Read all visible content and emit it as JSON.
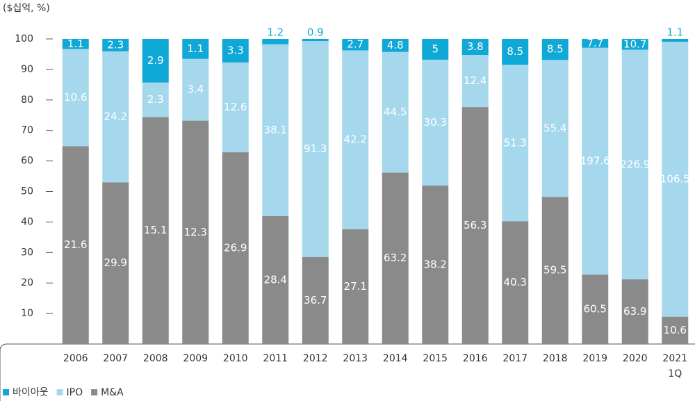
{
  "chart_data": {
    "type": "bar",
    "stack": "percent",
    "y_label": "($십억, %)",
    "categories": [
      "2006",
      "2007",
      "2008",
      "2009",
      "2010",
      "2011",
      "2012",
      "2013",
      "2014",
      "2015",
      "2016",
      "2017",
      "2018",
      "2019",
      "2020",
      "2021 1Q"
    ],
    "series": [
      {
        "name": "M&A",
        "color": "#8a8a8a",
        "values": [
          21.6,
          29.9,
          15.1,
          12.3,
          26.9,
          28.4,
          36.7,
          27.1,
          63.2,
          38.2,
          56.3,
          40.3,
          59.5,
          60.5,
          63.9,
          10.6
        ]
      },
      {
        "name": "IPO",
        "color": "#a6d8ed",
        "values": [
          10.6,
          24.2,
          2.3,
          3.4,
          12.6,
          38.1,
          91.3,
          42.2,
          44.5,
          30.3,
          12.4,
          51.3,
          55.4,
          197.6,
          226.9,
          106.5
        ]
      },
      {
        "name": "바이아웃",
        "color": "#10a8d6",
        "values": [
          1.1,
          2.3,
          2.9,
          1.1,
          3.3,
          1.2,
          0.9,
          2.7,
          4.8,
          5.0,
          3.8,
          8.5,
          8.5,
          7.7,
          10.7,
          1.1
        ]
      }
    ],
    "ylim": [
      0,
      100
    ],
    "yticks": [
      10,
      20,
      30,
      40,
      50,
      60,
      70,
      80,
      90,
      100
    ]
  }
}
